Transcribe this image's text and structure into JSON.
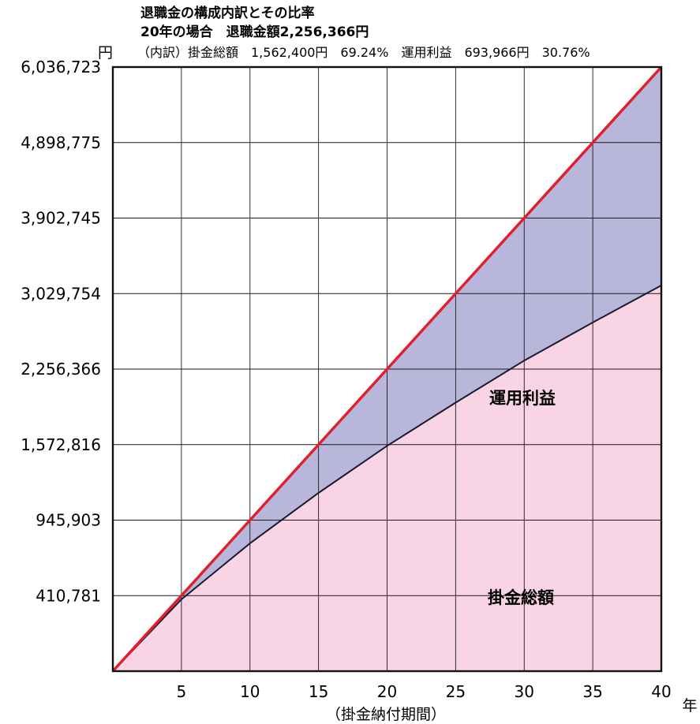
{
  "header": {
    "title": "退職金の構成内訳とその比率",
    "subtitle": "20年の場合　退職金額2,256,366円",
    "breakdown": "（内訳）掛金総額　1,562,400円　69.24%　運用利益　693,966円　30.76%"
  },
  "chart_data": {
    "type": "area",
    "title": "退職金の構成内訳とその比率",
    "xlabel": "（掛金納付期間）",
    "x_unit": "年",
    "y_unit": "円",
    "xlim": [
      0,
      40
    ],
    "x_ticks": [
      5,
      10,
      15,
      20,
      25,
      30,
      35,
      40
    ],
    "x_tick_labels": [
      "5",
      "10",
      "15",
      "20",
      "25",
      "30",
      "35",
      "40"
    ],
    "y_ticks": [
      410781,
      945903,
      1572816,
      2256366,
      3029754,
      3902745,
      4898775,
      6036723
    ],
    "y_tick_labels": [
      "410,781",
      "945,903",
      "1,572,816",
      "2,256,366",
      "3,029,754",
      "3,902,745",
      "4,898,775",
      "6,036,723"
    ],
    "grid": true,
    "series": [
      {
        "name": "掛金総額",
        "x": [
          0,
          5,
          10,
          15,
          20,
          25,
          30,
          35,
          40
        ],
        "values": [
          0,
          390600,
          781200,
          1171800,
          1562400,
          1953000,
          2343600,
          2734200,
          3124800
        ]
      },
      {
        "name": "運用利益",
        "x": [
          0,
          5,
          10,
          15,
          20,
          25,
          30,
          35,
          40
        ],
        "values": [
          0,
          20181,
          164703,
          401016,
          693966,
          1076754,
          1559145,
          2164575,
          2911923
        ]
      }
    ],
    "total": {
      "x": [
        0,
        5,
        10,
        15,
        20,
        25,
        30,
        35,
        40
      ],
      "values": [
        0,
        410781,
        945903,
        1572816,
        2256366,
        3029754,
        3902745,
        4898775,
        6036723
      ]
    },
    "colors": {
      "contribution_fill": "#f8d4e4",
      "profit_fill": "#b9b6dc",
      "total_line": "#e0202c",
      "contribution_line": "#1a1a2e",
      "grid": "#1a1a1a"
    }
  }
}
